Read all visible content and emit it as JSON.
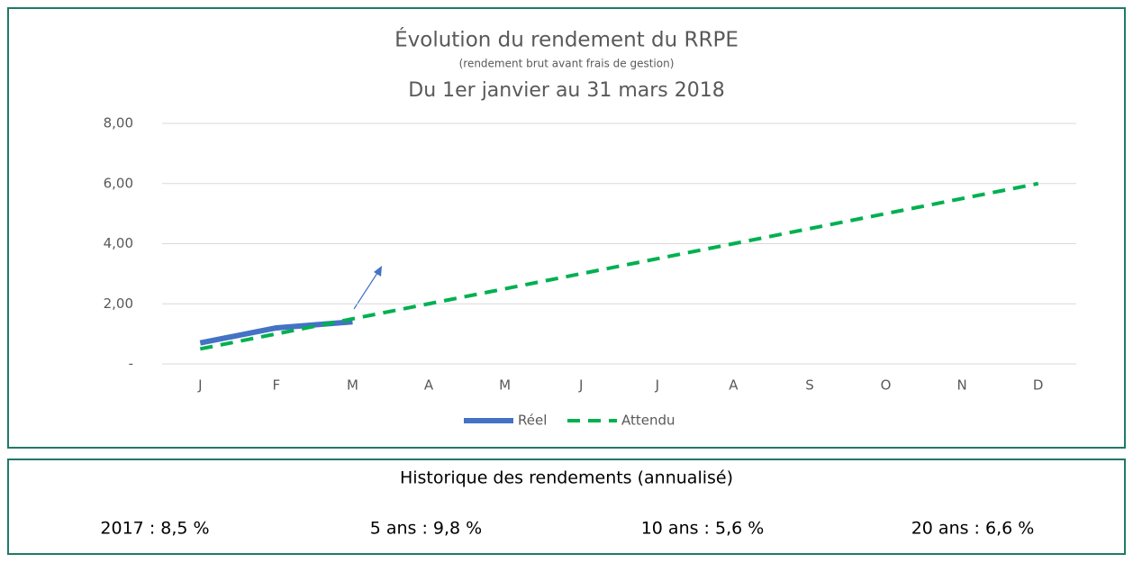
{
  "chart_data": {
    "type": "line",
    "title": "Évolution du rendement du RRPE",
    "subtitle": "(rendement brut avant frais de gestion)",
    "period": "Du 1er janvier au 31 mars 2018",
    "categories": [
      "J",
      "F",
      "M",
      "A",
      "M",
      "J",
      "J",
      "A",
      "S",
      "O",
      "N",
      "D"
    ],
    "series": [
      {
        "name": "Réel",
        "color": "#4472c4",
        "dashed": false,
        "values": [
          0.7,
          1.2,
          1.4,
          null,
          null,
          null,
          null,
          null,
          null,
          null,
          null,
          null
        ]
      },
      {
        "name": "Attendu",
        "color": "#00b050",
        "dashed": true,
        "values": [
          0.5,
          1.0,
          1.5,
          2.0,
          2.5,
          3.0,
          3.5,
          4.0,
          4.5,
          5.0,
          5.5,
          6.0
        ]
      }
    ],
    "ylim": [
      0,
      8
    ],
    "yticks": [
      {
        "value": 0,
        "label": "-"
      },
      {
        "value": 2,
        "label": "2,00"
      },
      {
        "value": 4,
        "label": "4,00"
      },
      {
        "value": 6,
        "label": "6,00"
      },
      {
        "value": 8,
        "label": "8,00"
      }
    ],
    "grid": true,
    "legend": "bottom"
  },
  "history": {
    "title": "Historique des rendements (annualisé)",
    "items": [
      "2017 : 8,5 %",
      "5 ans : 9,8 %",
      "10 ans : 5,6 %",
      "20 ans : 6,6 %"
    ]
  }
}
